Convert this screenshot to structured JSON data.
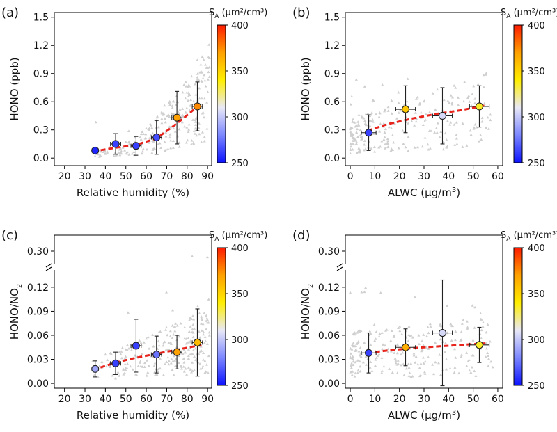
{
  "colorbar": {
    "label": "SA (μm²/cm³)",
    "label_main": "S",
    "label_sub": "A",
    "label_units": " (μm²/cm³)",
    "min": 250,
    "max": 400,
    "ticks": [
      250,
      300,
      350,
      400
    ],
    "colors": [
      "#0b12ff",
      "#7b86ff",
      "#e8e8f6",
      "#ffee00",
      "#ffa100",
      "#ff1a00"
    ]
  },
  "fit_color": "#e8231c",
  "scatter_color": "#cfcfcf",
  "chart_data": [
    {
      "type": "scatter",
      "panel": "(a)",
      "xlabel": "Relative humidity (%)",
      "ylabel": "HONO (ppb)",
      "xlim": [
        15,
        92
      ],
      "ylim": [
        -0.08,
        1.55
      ],
      "xticks": [
        20,
        30,
        40,
        50,
        60,
        70,
        80,
        90
      ],
      "yticks": [
        0.0,
        0.3,
        0.6,
        0.9,
        1.2,
        1.5
      ],
      "ytick_labels": [
        "0.0",
        "0.3",
        "0.6",
        "0.9",
        "1.2",
        "1.5"
      ],
      "points": [
        {
          "x": 35,
          "y": 0.08,
          "xerr": 1.5,
          "yerr": 0.03,
          "sa": 255
        },
        {
          "x": 45,
          "y": 0.15,
          "xerr": 2.5,
          "yerr": 0.11,
          "sa": 262
        },
        {
          "x": 55,
          "y": 0.13,
          "xerr": 2.5,
          "yerr": 0.1,
          "sa": 262
        },
        {
          "x": 65,
          "y": 0.22,
          "xerr": 2.5,
          "yerr": 0.18,
          "sa": 265
        },
        {
          "x": 75,
          "y": 0.43,
          "xerr": 2.5,
          "yerr": 0.28,
          "sa": 370
        },
        {
          "x": 85,
          "y": 0.55,
          "xerr": 2.5,
          "yerr": 0.26,
          "sa": 375
        }
      ],
      "fit": {
        "x": [
          34,
          45,
          55,
          65,
          72,
          78,
          84,
          87
        ],
        "y": [
          0.07,
          0.11,
          0.14,
          0.21,
          0.32,
          0.42,
          0.53,
          0.58
        ]
      }
    },
    {
      "type": "scatter",
      "panel": "(b)",
      "xlabel": "ALWC (μg/m³)",
      "xlabel_main": "ALWC (μg/m",
      "xlabel_sup": "3",
      "xlabel_end": ")",
      "ylabel": "HONO (ppb)",
      "xlim": [
        -2,
        62
      ],
      "ylim": [
        -0.08,
        1.55
      ],
      "xticks": [
        0,
        10,
        20,
        30,
        40,
        50,
        60
      ],
      "yticks": [
        0.0,
        0.3,
        0.6,
        0.9,
        1.2,
        1.5
      ],
      "ytick_labels": [
        "0.0",
        "0.3",
        "0.6",
        "0.9",
        "1.2",
        "1.5"
      ],
      "points": [
        {
          "x": 7.5,
          "y": 0.27,
          "xerr": 3,
          "yerr": 0.19,
          "sa": 262
        },
        {
          "x": 22.5,
          "y": 0.52,
          "xerr": 4,
          "yerr": 0.25,
          "sa": 355
        },
        {
          "x": 37.5,
          "y": 0.45,
          "xerr": 4,
          "yerr": 0.3,
          "sa": 305
        },
        {
          "x": 52.5,
          "y": 0.55,
          "xerr": 4,
          "yerr": 0.22,
          "sa": 335
        }
      ],
      "fit": {
        "x": [
          7,
          15,
          25,
          35,
          45,
          55
        ],
        "y": [
          0.29,
          0.36,
          0.42,
          0.47,
          0.51,
          0.56
        ]
      }
    },
    {
      "type": "scatter",
      "panel": "(c)",
      "xlabel": "Relative humidity (%)",
      "ylabel": "HONO/NO2",
      "ylabel_main": "HONO/NO",
      "ylabel_sub": "2",
      "xlim": [
        15,
        92
      ],
      "ylim": [
        -0.006,
        0.185
      ],
      "break_after": 0.138,
      "xticks": [
        20,
        30,
        40,
        50,
        60,
        70,
        80,
        90
      ],
      "yticks": [
        0.0,
        0.03,
        0.06,
        0.09,
        0.12
      ],
      "ytick_labels": [
        "0.00",
        "0.03",
        "0.06",
        "0.09",
        "0.12"
      ],
      "top_tick": {
        "label": "0.30"
      },
      "points": [
        {
          "x": 35,
          "y": 0.018,
          "xerr": 1.5,
          "yerr": 0.01,
          "sa": 290
        },
        {
          "x": 45,
          "y": 0.025,
          "xerr": 2.5,
          "yerr": 0.014,
          "sa": 262
        },
        {
          "x": 55,
          "y": 0.047,
          "xerr": 2.5,
          "yerr": 0.033,
          "sa": 262
        },
        {
          "x": 65,
          "y": 0.036,
          "xerr": 2.5,
          "yerr": 0.023,
          "sa": 275
        },
        {
          "x": 75,
          "y": 0.039,
          "xerr": 2.5,
          "yerr": 0.021,
          "sa": 370
        },
        {
          "x": 85,
          "y": 0.051,
          "xerr": 2.5,
          "yerr": 0.042,
          "sa": 360
        }
      ],
      "fit": {
        "x": [
          34,
          45,
          55,
          65,
          75,
          87
        ],
        "y": [
          0.017,
          0.026,
          0.032,
          0.037,
          0.042,
          0.048
        ]
      }
    },
    {
      "type": "scatter",
      "panel": "(d)",
      "xlabel": "ALWC (μg/m³)",
      "xlabel_main": "ALWC (μg/m",
      "xlabel_sup": "3",
      "xlabel_end": ")",
      "ylabel": "HONO/NO2",
      "ylabel_main": "HONO/NO",
      "ylabel_sub": "2",
      "xlim": [
        -2,
        62
      ],
      "ylim": [
        -0.006,
        0.185
      ],
      "break_after": 0.138,
      "xticks": [
        0,
        10,
        20,
        30,
        40,
        50,
        60
      ],
      "yticks": [
        0.0,
        0.03,
        0.06,
        0.09,
        0.12
      ],
      "ytick_labels": [
        "0.00",
        "0.03",
        "0.06",
        "0.09",
        "0.12"
      ],
      "top_tick": {
        "label": "0.30"
      },
      "points": [
        {
          "x": 7.5,
          "y": 0.038,
          "xerr": 3,
          "yerr": 0.025,
          "sa": 262
        },
        {
          "x": 22.5,
          "y": 0.045,
          "xerr": 4,
          "yerr": 0.023,
          "sa": 365
        },
        {
          "x": 37.5,
          "y": 0.063,
          "xerr": 4,
          "yerr": 0.066,
          "sa": 305
        },
        {
          "x": 52.5,
          "y": 0.048,
          "xerr": 4,
          "yerr": 0.022,
          "sa": 335
        }
      ],
      "fit": {
        "x": [
          7,
          15,
          25,
          35,
          45,
          55
        ],
        "y": [
          0.038,
          0.041,
          0.044,
          0.046,
          0.048,
          0.05
        ]
      }
    }
  ]
}
